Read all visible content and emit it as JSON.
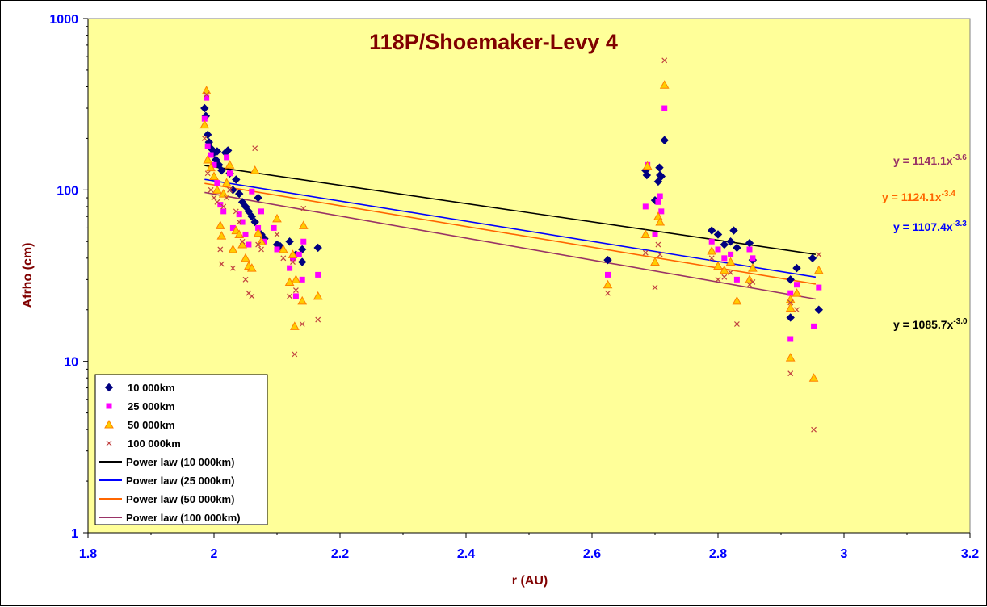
{
  "chart_data": {
    "type": "scatter",
    "title": "118P/Shoemaker-Levy 4",
    "xlabel": "r (AU)",
    "ylabel": "Afrho (cm)",
    "xlim": [
      1.8,
      3.2
    ],
    "ylim": [
      1,
      1000
    ],
    "yscale": "log",
    "xticks": [
      "1.8",
      "2",
      "2.2",
      "2.4",
      "2.6",
      "2.8",
      "3",
      "3.2"
    ],
    "yticks": [
      "1",
      "10",
      "100",
      "1000"
    ],
    "legend_position": "bottom-left",
    "colors": {
      "plot_bg": "#ffff99",
      "axis_text": "#0000ff",
      "title": "#800000"
    },
    "series": [
      {
        "name": "10 000km",
        "marker": "diamond",
        "color": "#000080",
        "points": [
          [
            1.985,
            300
          ],
          [
            1.987,
            270
          ],
          [
            1.99,
            210
          ],
          [
            1.992,
            190
          ],
          [
            1.995,
            175
          ],
          [
            2.0,
            165
          ],
          [
            2.003,
            150
          ],
          [
            2.005,
            168
          ],
          [
            2.008,
            140
          ],
          [
            2.012,
            130
          ],
          [
            2.018,
            165
          ],
          [
            2.022,
            170
          ],
          [
            2.025,
            125
          ],
          [
            2.03,
            100
          ],
          [
            2.035,
            115
          ],
          [
            2.04,
            95
          ],
          [
            2.045,
            85
          ],
          [
            2.05,
            80
          ],
          [
            2.055,
            75
          ],
          [
            2.06,
            70
          ],
          [
            2.065,
            65
          ],
          [
            2.07,
            90
          ],
          [
            2.075,
            55
          ],
          [
            2.08,
            52
          ],
          [
            2.1,
            48
          ],
          [
            2.105,
            47
          ],
          [
            2.12,
            50
          ],
          [
            2.13,
            42
          ],
          [
            2.14,
            45
          ],
          [
            2.14,
            38
          ],
          [
            2.165,
            46
          ],
          [
            2.625,
            39
          ],
          [
            2.685,
            130
          ],
          [
            2.687,
            122
          ],
          [
            2.7,
            87
          ],
          [
            2.705,
            112
          ],
          [
            2.707,
            135
          ],
          [
            2.708,
            122
          ],
          [
            2.71,
            120
          ],
          [
            2.715,
            195
          ],
          [
            2.79,
            58
          ],
          [
            2.8,
            55
          ],
          [
            2.81,
            48
          ],
          [
            2.82,
            50
          ],
          [
            2.825,
            58
          ],
          [
            2.83,
            46
          ],
          [
            2.85,
            49
          ],
          [
            2.855,
            39
          ],
          [
            2.915,
            30
          ],
          [
            2.915,
            18
          ],
          [
            2.925,
            35
          ],
          [
            2.95,
            40
          ],
          [
            2.96,
            20
          ]
        ]
      },
      {
        "name": "25 000km",
        "marker": "square",
        "color": "#ff00ff",
        "points": [
          [
            1.985,
            260
          ],
          [
            1.988,
            345
          ],
          [
            1.99,
            180
          ],
          [
            1.995,
            160
          ],
          [
            2.0,
            140
          ],
          [
            2.005,
            110
          ],
          [
            2.01,
            82
          ],
          [
            2.015,
            75
          ],
          [
            2.02,
            155
          ],
          [
            2.025,
            125
          ],
          [
            2.03,
            60
          ],
          [
            2.04,
            72
          ],
          [
            2.045,
            65
          ],
          [
            2.05,
            55
          ],
          [
            2.055,
            48
          ],
          [
            2.06,
            98
          ],
          [
            2.07,
            60
          ],
          [
            2.075,
            75
          ],
          [
            2.08,
            50
          ],
          [
            2.095,
            60
          ],
          [
            2.1,
            45
          ],
          [
            2.12,
            35
          ],
          [
            2.125,
            40
          ],
          [
            2.13,
            24
          ],
          [
            2.135,
            42
          ],
          [
            2.14,
            30
          ],
          [
            2.142,
            50
          ],
          [
            2.165,
            32
          ],
          [
            2.625,
            32
          ],
          [
            2.685,
            80
          ],
          [
            2.688,
            140
          ],
          [
            2.7,
            55
          ],
          [
            2.705,
            85
          ],
          [
            2.708,
            92
          ],
          [
            2.71,
            75
          ],
          [
            2.715,
            300
          ],
          [
            2.79,
            50
          ],
          [
            2.8,
            45
          ],
          [
            2.81,
            40
          ],
          [
            2.82,
            42
          ],
          [
            2.83,
            30
          ],
          [
            2.85,
            45
          ],
          [
            2.855,
            40
          ],
          [
            2.915,
            25
          ],
          [
            2.915,
            13.5
          ],
          [
            2.925,
            28
          ],
          [
            2.952,
            16
          ],
          [
            2.96,
            27
          ]
        ]
      },
      {
        "name": "50 000km",
        "marker": "triangle",
        "color": "#ff8000",
        "points": [
          [
            1.985,
            240
          ],
          [
            1.988,
            380
          ],
          [
            1.99,
            150
          ],
          [
            1.995,
            135
          ],
          [
            2.0,
            120
          ],
          [
            2.005,
            100
          ],
          [
            2.01,
            62
          ],
          [
            2.012,
            54
          ],
          [
            2.015,
            95
          ],
          [
            2.02,
            110
          ],
          [
            2.025,
            140
          ],
          [
            2.03,
            45
          ],
          [
            2.035,
            58
          ],
          [
            2.04,
            55
          ],
          [
            2.045,
            48
          ],
          [
            2.05,
            40
          ],
          [
            2.055,
            36
          ],
          [
            2.06,
            35
          ],
          [
            2.065,
            130
          ],
          [
            2.07,
            56
          ],
          [
            2.075,
            50
          ],
          [
            2.1,
            68
          ],
          [
            2.11,
            45
          ],
          [
            2.12,
            29
          ],
          [
            2.125,
            42
          ],
          [
            2.128,
            16
          ],
          [
            2.13,
            30
          ],
          [
            2.14,
            22.5
          ],
          [
            2.142,
            62
          ],
          [
            2.165,
            24
          ],
          [
            2.625,
            28
          ],
          [
            2.685,
            55
          ],
          [
            2.688,
            138
          ],
          [
            2.7,
            38
          ],
          [
            2.705,
            70
          ],
          [
            2.708,
            65
          ],
          [
            2.715,
            410
          ],
          [
            2.79,
            44
          ],
          [
            2.8,
            36
          ],
          [
            2.81,
            34
          ],
          [
            2.82,
            38
          ],
          [
            2.83,
            22.5
          ],
          [
            2.85,
            30
          ],
          [
            2.855,
            35
          ],
          [
            2.915,
            23
          ],
          [
            2.915,
            10.5
          ],
          [
            2.915,
            20.5
          ],
          [
            2.925,
            25
          ],
          [
            2.952,
            8
          ],
          [
            2.96,
            34
          ]
        ]
      },
      {
        "name": "100 000km",
        "marker": "x",
        "color": "#c04040",
        "points": [
          [
            1.985,
            200
          ],
          [
            1.988,
            360
          ],
          [
            1.99,
            125
          ],
          [
            1.995,
            100
          ],
          [
            2.0,
            90
          ],
          [
            2.005,
            85
          ],
          [
            2.01,
            45
          ],
          [
            2.012,
            37
          ],
          [
            2.015,
            80
          ],
          [
            2.02,
            90
          ],
          [
            2.025,
            100
          ],
          [
            2.03,
            35
          ],
          [
            2.035,
            75
          ],
          [
            2.04,
            65
          ],
          [
            2.045,
            50
          ],
          [
            2.05,
            30
          ],
          [
            2.055,
            25
          ],
          [
            2.06,
            24
          ],
          [
            2.065,
            175
          ],
          [
            2.07,
            48
          ],
          [
            2.075,
            45
          ],
          [
            2.1,
            55
          ],
          [
            2.11,
            40
          ],
          [
            2.12,
            24
          ],
          [
            2.125,
            38
          ],
          [
            2.128,
            11
          ],
          [
            2.13,
            26
          ],
          [
            2.14,
            16.5
          ],
          [
            2.142,
            78
          ],
          [
            2.165,
            17.5
          ],
          [
            2.625,
            25
          ],
          [
            2.685,
            43
          ],
          [
            2.7,
            27
          ],
          [
            2.705,
            48
          ],
          [
            2.708,
            42
          ],
          [
            2.715,
            570
          ],
          [
            2.79,
            40
          ],
          [
            2.8,
            30
          ],
          [
            2.81,
            31
          ],
          [
            2.82,
            33
          ],
          [
            2.83,
            16.5
          ],
          [
            2.85,
            28
          ],
          [
            2.855,
            29
          ],
          [
            2.915,
            22
          ],
          [
            2.915,
            8.5
          ],
          [
            2.925,
            20
          ],
          [
            2.952,
            4
          ],
          [
            2.96,
            42
          ]
        ]
      }
    ],
    "fits": [
      {
        "name": "Power law (10 000km)",
        "color": "#000000",
        "a": 1085.7,
        "b": -3.0,
        "x_range": [
          1.985,
          2.955
        ],
        "label_coef": "y = 1085.7x",
        "label_exp": "-3.0",
        "label_color": "#000000"
      },
      {
        "name": "Power law (25 000km)",
        "color": "#0000ff",
        "a": 1107.4,
        "b": -3.3,
        "x_range": [
          1.985,
          2.955
        ],
        "label_coef": "y = 1107.4x",
        "label_exp": "-3.3",
        "label_color": "#0000ff"
      },
      {
        "name": "Power law (50 000km)",
        "color": "#ff6600",
        "a": 1124.1,
        "b": -3.4,
        "x_range": [
          1.985,
          2.955
        ],
        "label_coef": "y = 1124.1x",
        "label_exp": "-3.4",
        "label_color": "#ff6600"
      },
      {
        "name": "Power law (100 000km)",
        "color": "#993366",
        "a": 1141.1,
        "b": -3.6,
        "x_range": [
          1.985,
          2.955
        ],
        "label_coef": "y = 1141.1x",
        "label_exp": "-3.6",
        "label_color": "#993366"
      }
    ]
  }
}
